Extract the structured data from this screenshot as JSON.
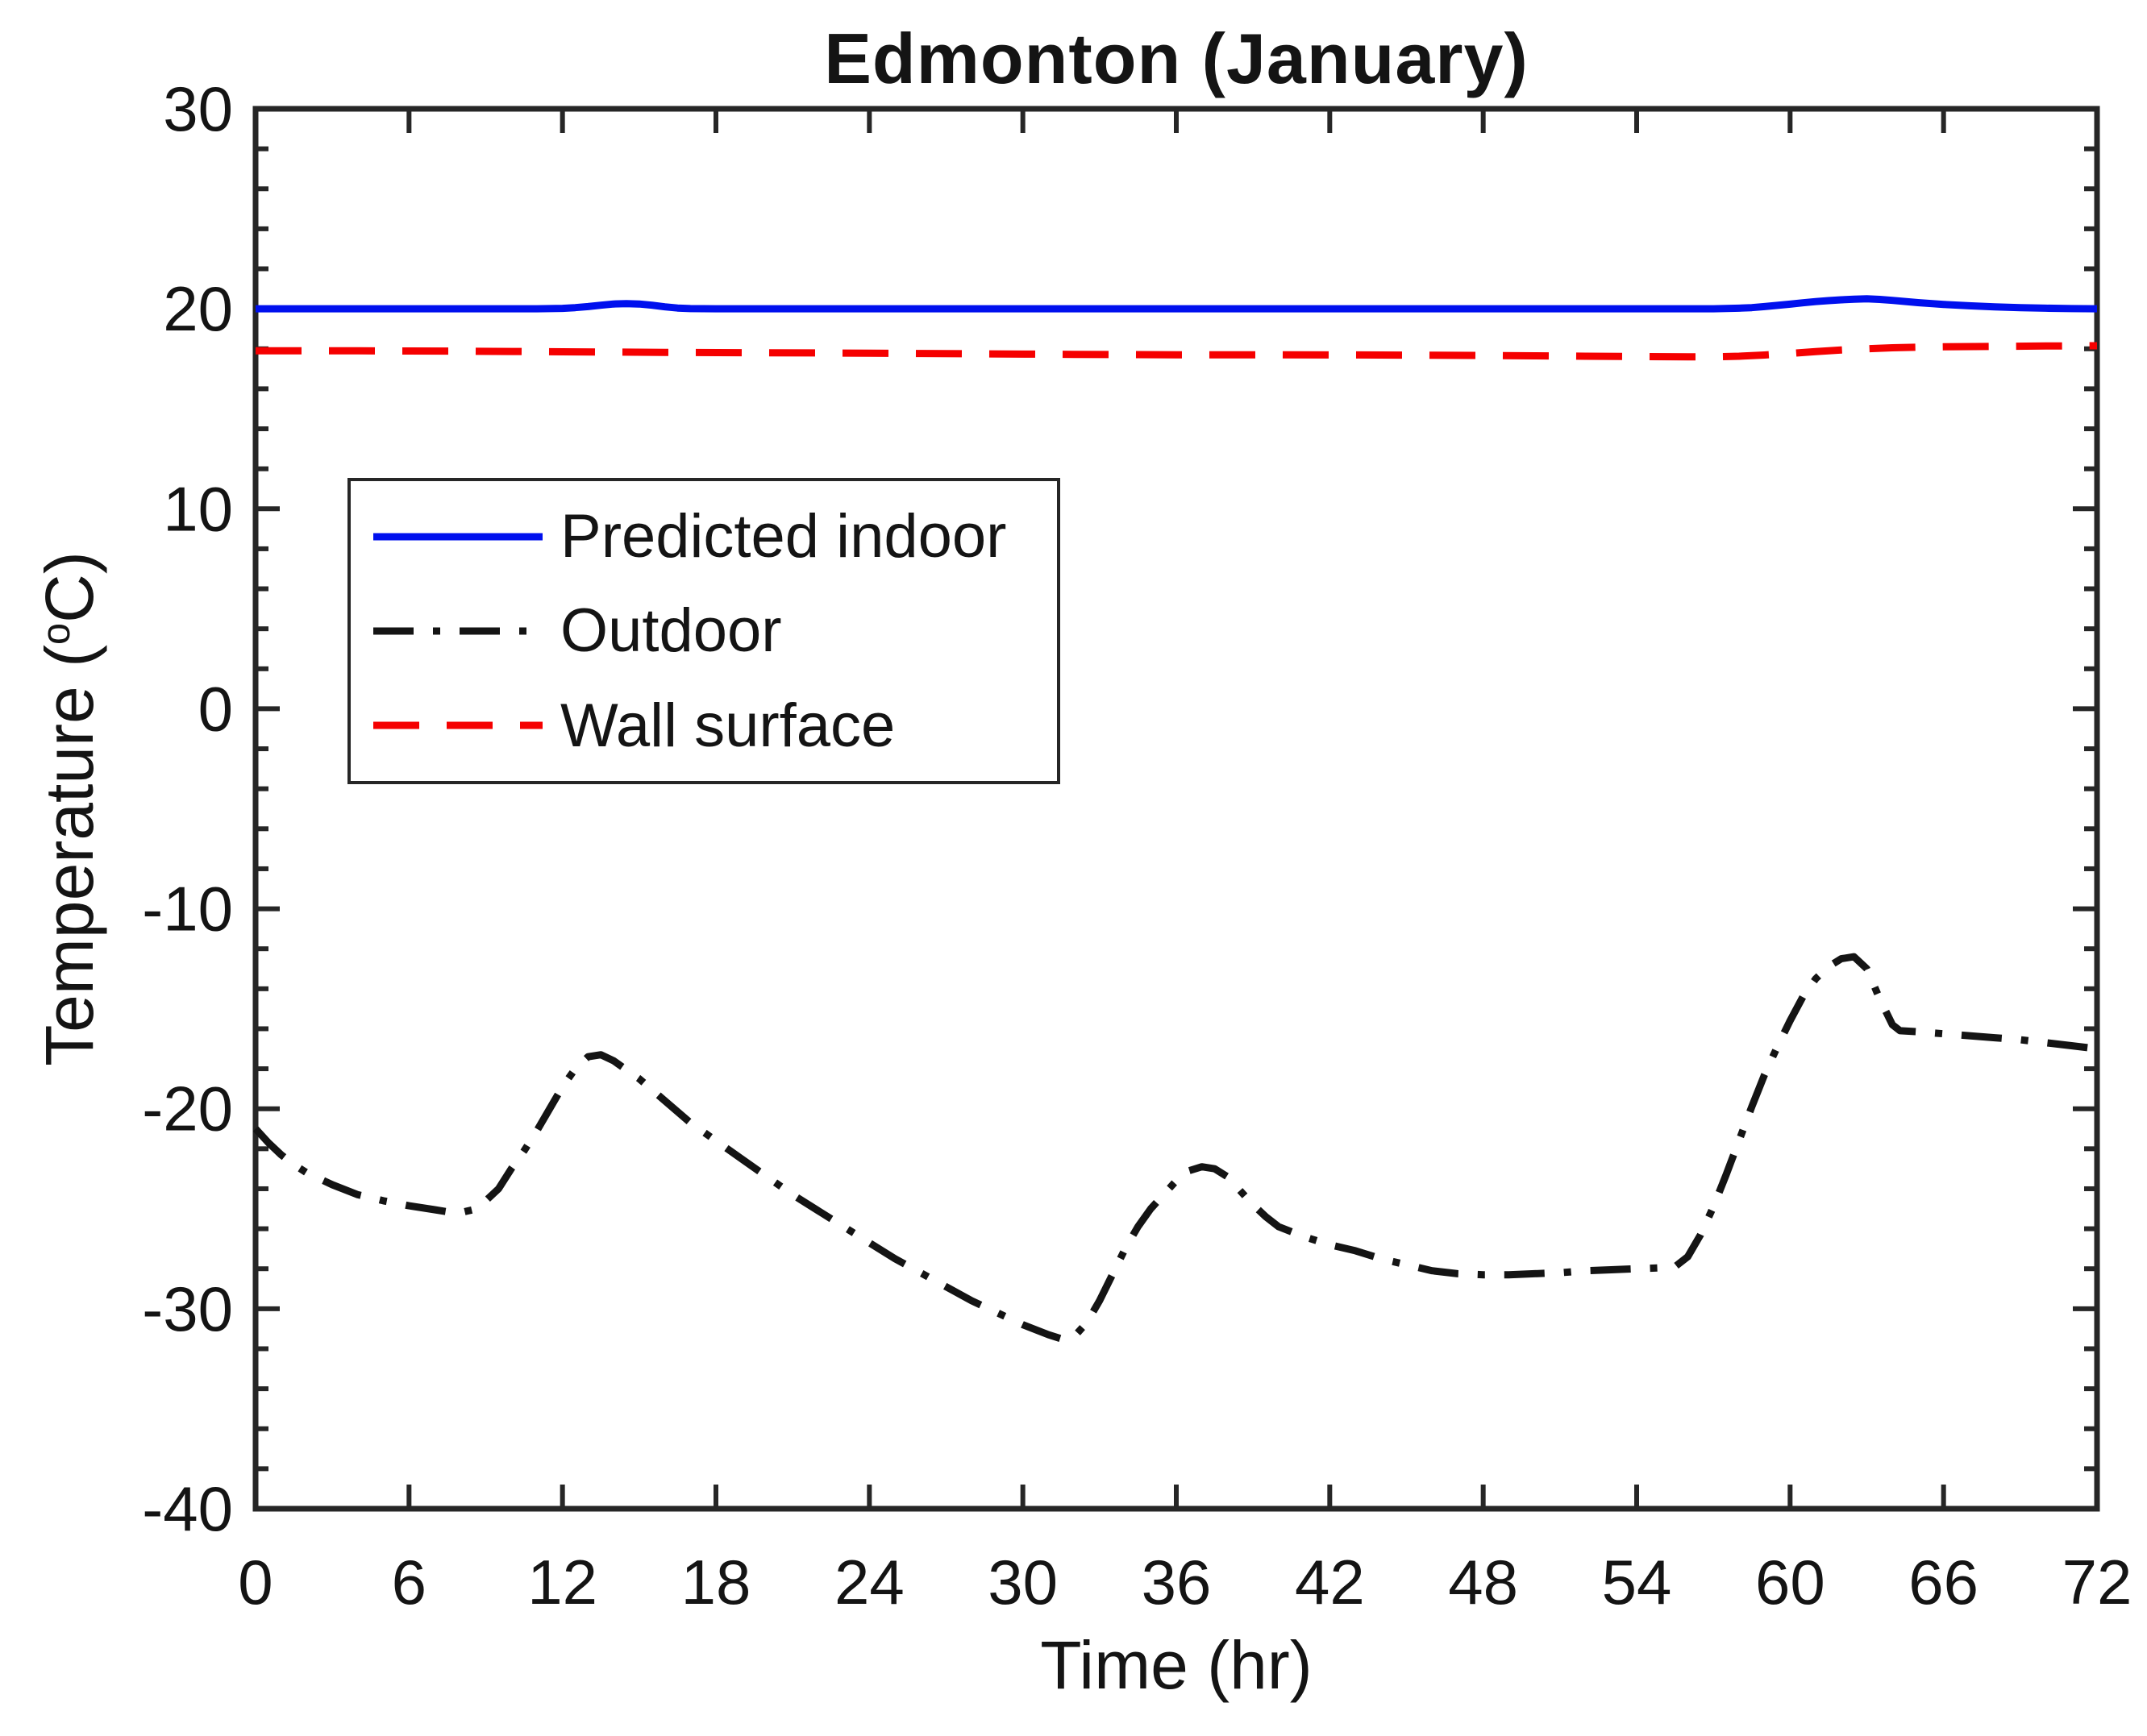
{
  "figure": {
    "title": "Edmonton (January)",
    "xlabel": "Time (hr)",
    "ylabel_prefix": "Temperature (",
    "ylabel_sup": "o",
    "ylabel_suffix": "C)"
  },
  "legend": {
    "entries": [
      {
        "label": "Predicted indoor",
        "series": "indoor"
      },
      {
        "label": "Outdoor",
        "series": "outdoor"
      },
      {
        "label": "Wall surface",
        "series": "wall"
      }
    ]
  },
  "chart_data": {
    "type": "line",
    "title": "Edmonton (January)",
    "xlabel": "Time (hr)",
    "ylabel": "Temperature (oC)",
    "xlim": [
      0,
      72
    ],
    "ylim": [
      -40,
      30
    ],
    "xticks": [
      0,
      6,
      12,
      18,
      24,
      30,
      36,
      42,
      48,
      54,
      60,
      66,
      72
    ],
    "yticks": [
      30,
      20,
      10,
      0,
      -10,
      -20,
      -30,
      -40
    ],
    "y_minor_step": 2,
    "grid": false,
    "legend_position": "upper-left-inside",
    "axis_color": "#262626",
    "text_color": "#141414",
    "series": [
      {
        "name": "Predicted indoor",
        "id": "indoor",
        "color": "#0010ee",
        "style": "solid",
        "x": [
          0,
          4,
          8,
          11,
          12,
          12.5,
          13,
          13.5,
          14,
          14.5,
          15,
          15.5,
          16,
          16.5,
          17,
          18,
          22,
          26,
          30,
          34,
          38,
          42,
          46,
          50,
          54,
          57,
          58,
          58.5,
          59,
          59.5,
          60,
          60.5,
          61,
          61.5,
          62,
          62.5,
          63,
          63.5,
          64,
          65,
          66,
          67,
          68,
          69,
          70,
          71,
          72
        ],
        "y": [
          20,
          20,
          20,
          20,
          20.02,
          20.06,
          20.11,
          20.18,
          20.24,
          20.26,
          20.24,
          20.18,
          20.1,
          20.04,
          20.01,
          20,
          20,
          20,
          20,
          20,
          20,
          20,
          20,
          20,
          20,
          20,
          20.03,
          20.06,
          20.11,
          20.17,
          20.23,
          20.3,
          20.36,
          20.41,
          20.45,
          20.48,
          20.5,
          20.47,
          20.42,
          20.31,
          20.22,
          20.15,
          20.1,
          20.06,
          20.03,
          20.01,
          20
        ]
      },
      {
        "name": "Outdoor",
        "id": "outdoor",
        "color": "#141414",
        "style": "dashdot",
        "x": [
          0,
          0.5,
          1,
          1.5,
          2,
          2.5,
          3,
          4,
          5,
          6,
          7,
          7.5,
          8,
          8.5,
          9,
          9.5,
          10,
          10.5,
          11,
          11.5,
          12,
          12.5,
          13,
          13.5,
          14,
          15,
          16,
          17,
          18,
          19,
          20,
          21,
          22,
          23,
          24,
          25,
          26,
          27,
          28,
          29,
          30,
          31,
          31.5,
          32,
          32.5,
          33,
          33.5,
          34,
          34.5,
          35,
          35.5,
          36,
          36.5,
          37,
          37.5,
          38,
          38.5,
          39,
          39.5,
          40,
          41,
          42,
          43,
          44,
          45,
          46,
          47,
          48,
          49,
          50,
          51,
          52,
          53,
          54,
          55,
          55.5,
          56,
          56.5,
          57,
          57.5,
          58,
          58.5,
          59,
          59.5,
          60,
          60.5,
          61,
          61.5,
          62,
          62.5,
          63,
          63.5,
          64,
          64.3,
          65,
          66,
          67,
          68,
          69,
          70,
          71,
          72
        ],
        "y": [
          -21.0,
          -21.7,
          -22.3,
          -22.8,
          -23.2,
          -23.5,
          -23.8,
          -24.3,
          -24.6,
          -24.85,
          -25.05,
          -25.15,
          -25.2,
          -25.05,
          -24.6,
          -24.0,
          -23.0,
          -22.1,
          -21.1,
          -20.0,
          -18.9,
          -18.0,
          -17.4,
          -17.3,
          -17.6,
          -18.5,
          -19.6,
          -20.7,
          -21.6,
          -22.5,
          -23.4,
          -24.3,
          -25.1,
          -25.9,
          -26.7,
          -27.5,
          -28.2,
          -28.9,
          -29.6,
          -30.2,
          -30.8,
          -31.3,
          -31.5,
          -31.4,
          -30.7,
          -29.6,
          -28.3,
          -27.0,
          -25.9,
          -25.0,
          -24.3,
          -23.6,
          -23.1,
          -22.9,
          -23.0,
          -23.4,
          -24.1,
          -24.8,
          -25.4,
          -25.9,
          -26.4,
          -26.8,
          -27.1,
          -27.5,
          -27.8,
          -28.1,
          -28.25,
          -28.3,
          -28.3,
          -28.25,
          -28.2,
          -28.1,
          -28.05,
          -28.0,
          -27.95,
          -27.9,
          -27.4,
          -26.3,
          -24.9,
          -23.3,
          -21.6,
          -19.9,
          -18.3,
          -16.9,
          -15.6,
          -14.4,
          -13.5,
          -12.9,
          -12.5,
          -12.4,
          -13.0,
          -14.5,
          -15.8,
          -16.1,
          -16.15,
          -16.25,
          -16.35,
          -16.45,
          -16.55,
          -16.7,
          -16.85,
          -17.0
        ]
      },
      {
        "name": "Wall surface",
        "id": "wall",
        "color": "#f50000",
        "style": "dashed",
        "x": [
          0,
          4,
          8,
          12,
          16,
          20,
          24,
          28,
          32,
          36,
          40,
          44,
          48,
          50,
          52,
          54,
          56,
          57,
          58,
          59,
          60,
          61,
          62,
          63,
          64,
          65,
          66,
          68,
          70,
          72
        ],
        "y": [
          17.9,
          17.9,
          17.88,
          17.85,
          17.82,
          17.8,
          17.78,
          17.75,
          17.72,
          17.7,
          17.7,
          17.69,
          17.67,
          17.65,
          17.63,
          17.61,
          17.6,
          17.6,
          17.63,
          17.69,
          17.77,
          17.86,
          17.94,
          18.0,
          18.05,
          18.08,
          18.1,
          18.12,
          18.14,
          18.15
        ]
      }
    ]
  }
}
